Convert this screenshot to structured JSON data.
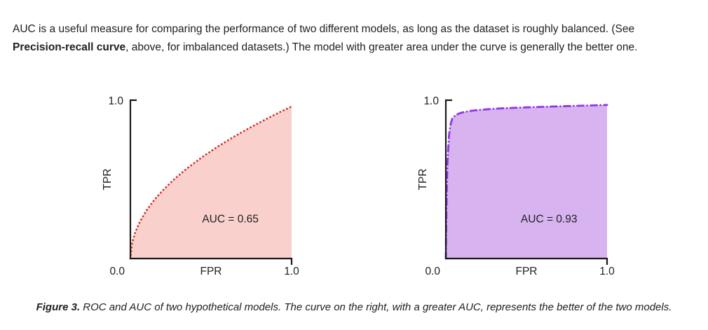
{
  "intro": {
    "text_before": "AUC is a useful measure for comparing the performance of two different models, as long as the dataset is roughly balanced. (See ",
    "bold_term": "Precision-recall curve",
    "text_after": ", above, for imbalanced datasets.) The model with greater area under the curve is generally the better one."
  },
  "caption": {
    "label": "Figure 3.",
    "text": " ROC and AUC of two hypothetical models. The curve on the right, with a greater AUC, represents the better of the two models."
  },
  "chart_data": [
    {
      "type": "area",
      "name": "roc-curve-model-left",
      "xlabel": "FPR",
      "ylabel": "TPR",
      "xlim": [
        0,
        1
      ],
      "ylim": [
        0,
        1
      ],
      "origin_label": "0.0",
      "x_max_label": "1.0",
      "y_max_label": "1.0",
      "annotation": "AUC = 0.65",
      "auc": 0.65,
      "annotation_pos": [
        0.62,
        0.25
      ],
      "line_style": "dotted",
      "line_color": "#d93025",
      "fill_color": "#f9d0cc",
      "axis_color": "#1a1a1a",
      "points": [
        [
          0,
          0
        ],
        [
          0.01,
          0.096
        ],
        [
          0.03,
          0.166
        ],
        [
          0.06,
          0.235
        ],
        [
          0.1,
          0.304
        ],
        [
          0.15,
          0.372
        ],
        [
          0.2,
          0.429
        ],
        [
          0.27,
          0.499
        ],
        [
          0.35,
          0.568
        ],
        [
          0.45,
          0.644
        ],
        [
          0.55,
          0.712
        ],
        [
          0.65,
          0.774
        ],
        [
          0.75,
          0.831
        ],
        [
          0.85,
          0.885
        ],
        [
          0.93,
          0.926
        ],
        [
          1,
          0.96
        ]
      ]
    },
    {
      "type": "area",
      "name": "roc-curve-model-right",
      "xlabel": "FPR",
      "ylabel": "TPR",
      "xlim": [
        0,
        1
      ],
      "ylim": [
        0,
        1
      ],
      "origin_label": "0.0",
      "x_max_label": "1.0",
      "y_max_label": "1.0",
      "annotation": "AUC = 0.93",
      "auc": 0.93,
      "annotation_pos": [
        0.64,
        0.25
      ],
      "line_style": "dash-dot",
      "line_color": "#9334e6",
      "fill_color": "#d7b3f0",
      "axis_color": "#1a1a1a",
      "points": [
        [
          0,
          0
        ],
        [
          0.003,
          0.25
        ],
        [
          0.006,
          0.45
        ],
        [
          0.01,
          0.6
        ],
        [
          0.015,
          0.7
        ],
        [
          0.02,
          0.78
        ],
        [
          0.03,
          0.85
        ],
        [
          0.04,
          0.885
        ],
        [
          0.06,
          0.905
        ],
        [
          0.08,
          0.915
        ],
        [
          0.1,
          0.922
        ],
        [
          0.15,
          0.932
        ],
        [
          0.2,
          0.938
        ],
        [
          0.3,
          0.946
        ],
        [
          0.4,
          0.951
        ],
        [
          0.5,
          0.955
        ],
        [
          0.6,
          0.958
        ],
        [
          0.7,
          0.961
        ],
        [
          0.8,
          0.964
        ],
        [
          0.9,
          0.967
        ],
        [
          1,
          0.97
        ]
      ]
    }
  ]
}
